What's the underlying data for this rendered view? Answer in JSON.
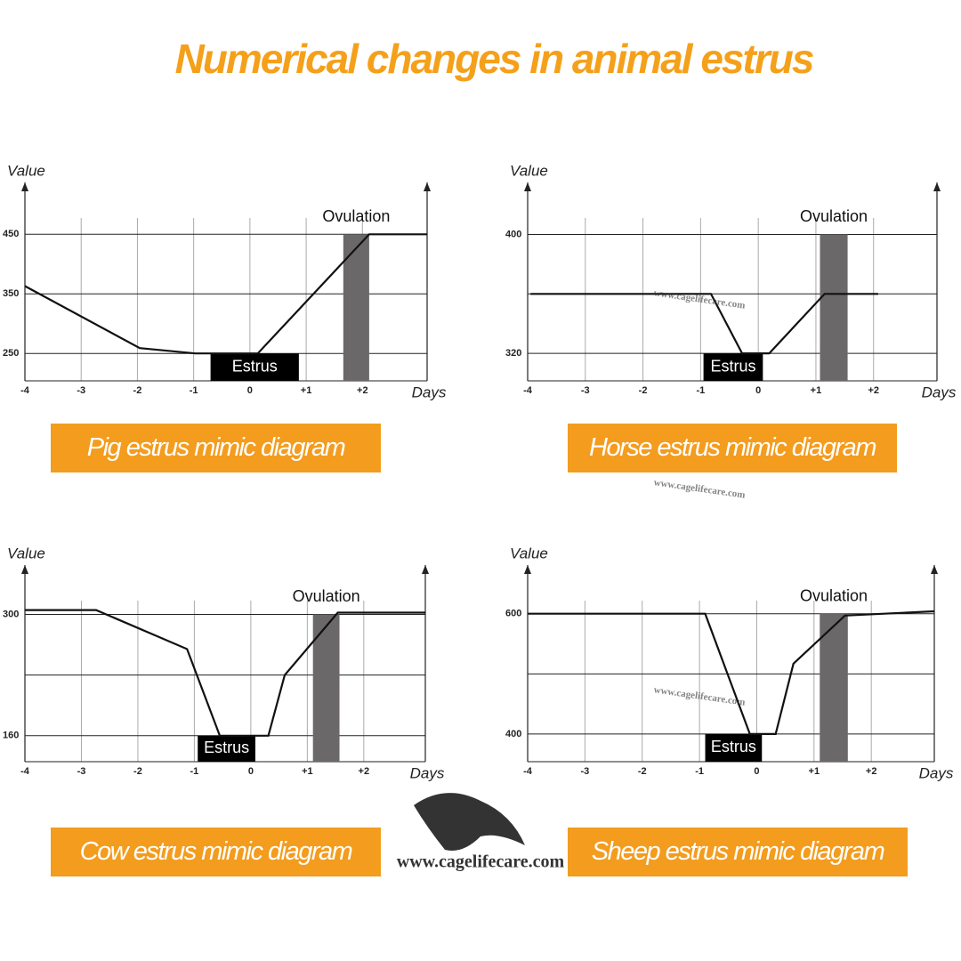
{
  "title": "Numerical changes in animal estrus",
  "watermark": "www.cagelifecare.com",
  "chart_data": [
    {
      "type": "line",
      "caption": "Pig estrus mimic diagram",
      "ylabel": "Value",
      "xlabel": "Days",
      "x": [
        -4,
        -1.96,
        -0.97,
        0.14,
        2.12,
        3.15
      ],
      "values": [
        363,
        259,
        250,
        250,
        450,
        450
      ],
      "color": "#111111",
      "xlim": [
        -4,
        3.15
      ],
      "xticks": [
        -4,
        -3,
        -2,
        -1,
        0,
        {
          "value": 1,
          "label": "+1"
        },
        {
          "value": 2,
          "label": "+2"
        }
      ],
      "ylim": [
        204,
        537
      ],
      "yticks": [
        250,
        350,
        450
      ],
      "grid_lines": [],
      "annotations": [
        {
          "text": "Estrus",
          "x": [
            -0.7,
            0.87
          ]
        },
        {
          "text": "Ovulation",
          "x": [
            1.66,
            2.12
          ]
        }
      ]
    },
    {
      "type": "line",
      "caption": "Horse estrus mimic diagram",
      "ylabel": "Value",
      "xlabel": "Days",
      "x": [
        -3.95,
        -0.82,
        -0.28,
        0.19,
        1.15,
        2.08
      ],
      "values": [
        360,
        360,
        320,
        320,
        360,
        360
      ],
      "color": "#111111",
      "xlim": [
        -4,
        3.1
      ],
      "xticks": [
        -4,
        -3,
        -2,
        -1,
        0,
        {
          "value": 1,
          "label": "+1"
        },
        {
          "value": 2,
          "label": "+2"
        }
      ],
      "ylim": [
        301.5,
        435
      ],
      "yticks": [
        320,
        400
      ],
      "grid_lines": [
        360
      ],
      "annotations": [
        {
          "text": "Estrus",
          "x": [
            -0.95,
            0.08
          ]
        },
        {
          "text": "Ovulation",
          "x": [
            1.07,
            1.55
          ]
        }
      ]
    },
    {
      "type": "line",
      "caption": "Cow estrus mimic diagram",
      "ylabel": "Value",
      "xlabel": "Days",
      "x": [
        -4,
        -2.74,
        -1.13,
        -0.55,
        0.31,
        0.6,
        1.54,
        3.09
      ],
      "values": [
        305,
        305,
        260,
        160,
        160,
        230,
        302,
        302
      ],
      "color": "#111111",
      "xlim": [
        -4,
        3.09
      ],
      "xticks": [
        -4,
        -3,
        -2,
        -1,
        0,
        {
          "value": 1,
          "label": "+1"
        },
        {
          "value": 2,
          "label": "+2"
        }
      ],
      "ylim": [
        130,
        357
      ],
      "yticks": [
        160,
        300
      ],
      "grid_lines": [
        230
      ],
      "annotations": [
        {
          "text": "Estrus",
          "x": [
            -0.94,
            0.08
          ]
        },
        {
          "text": "Ovulation",
          "x": [
            1.1,
            1.57
          ]
        }
      ]
    },
    {
      "type": "line",
      "caption": "Sheep estrus mimic diagram",
      "ylabel": "Value",
      "xlabel": "Days",
      "x": [
        -4,
        -0.9,
        -0.12,
        0.33,
        0.64,
        1.54,
        3.1
      ],
      "values": [
        600,
        600,
        400,
        400,
        517,
        597,
        604
      ],
      "color": "#111111",
      "xlim": [
        -4,
        3.1
      ],
      "xticks": [
        -4,
        -3,
        -2,
        -1,
        0,
        {
          "value": 1,
          "label": "+1"
        },
        {
          "value": 2,
          "label": "+2"
        }
      ],
      "ylim": [
        354,
        681
      ],
      "yticks": [
        400,
        600
      ],
      "grid_lines": [
        500
      ],
      "annotations": [
        {
          "text": "Estrus",
          "x": [
            -0.9,
            0.09
          ]
        },
        {
          "text": "Ovulation",
          "x": [
            1.1,
            1.59
          ]
        }
      ]
    }
  ]
}
